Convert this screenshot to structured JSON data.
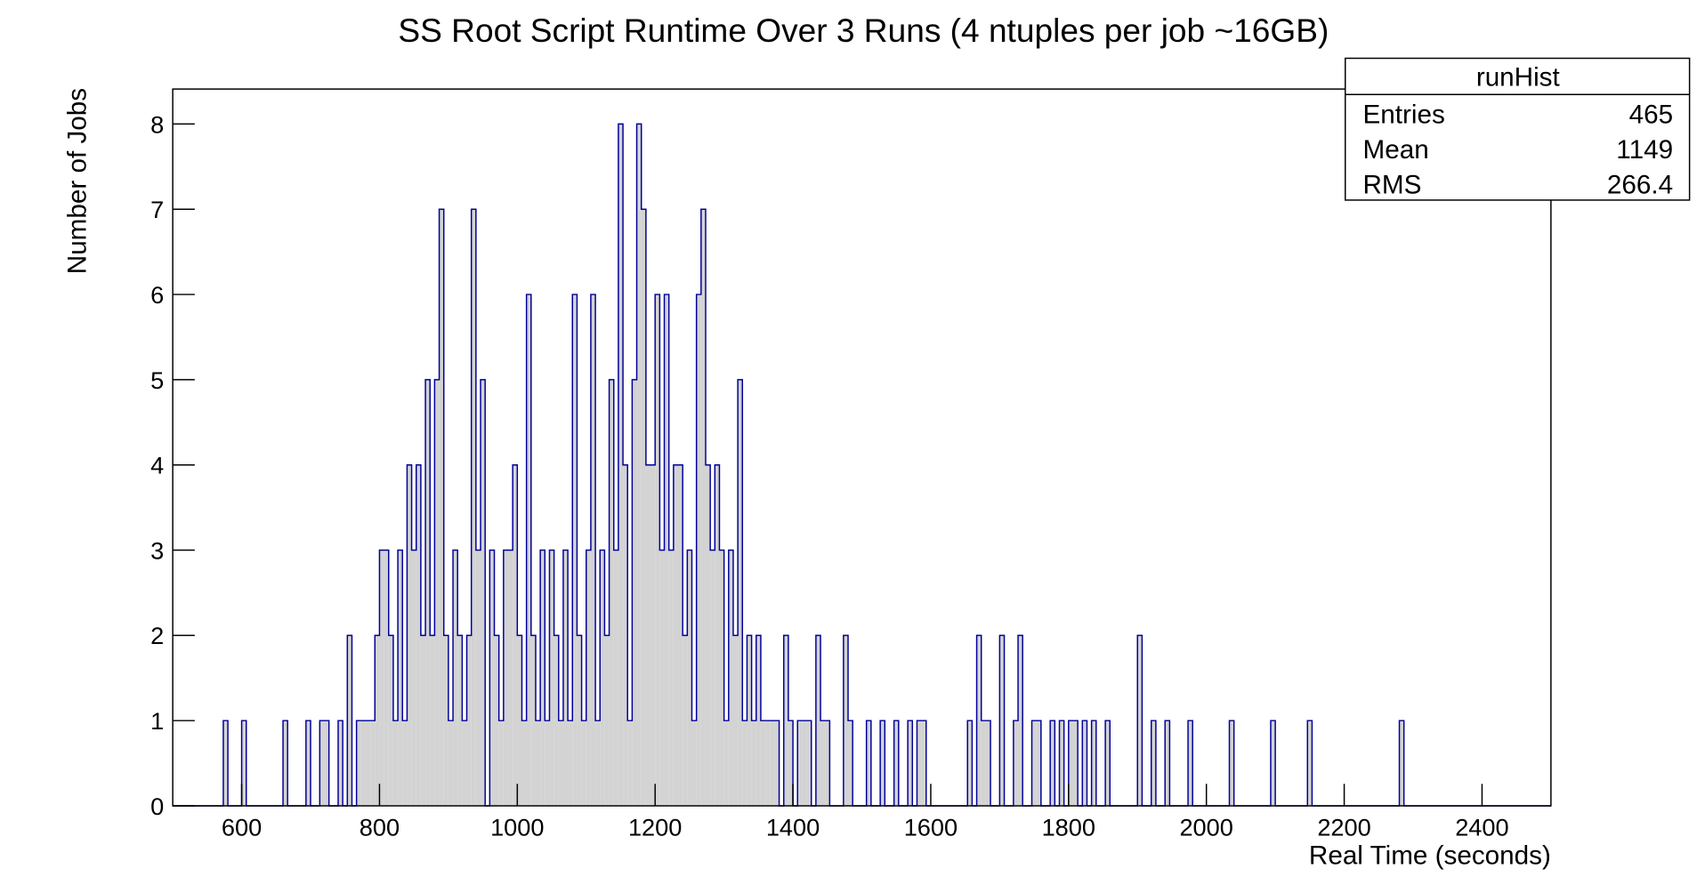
{
  "chart_data": {
    "type": "histogram",
    "title": "SS Root Script Runtime Over 3 Runs (4 ntuples per job ~16GB)",
    "xlabel": "Real Time (seconds)",
    "ylabel": "Number of Jobs",
    "color": "#d3d3d3",
    "edgecolor": "#000099",
    "xlim": [
      500,
      2500
    ],
    "ylim": [
      0,
      8.41
    ],
    "xticks": [
      600,
      800,
      1000,
      1200,
      1400,
      1600,
      1800,
      2000,
      2200,
      2400
    ],
    "yticks": [
      0,
      1,
      2,
      3,
      4,
      5,
      6,
      7,
      8
    ],
    "stats": {
      "title": "runHist",
      "rows": [
        {
          "label": "Entries",
          "value": 465
        },
        {
          "label": "Mean",
          "value": 1149
        },
        {
          "label": "RMS",
          "value": 266.4
        }
      ]
    },
    "bins": [
      500,
      506.67,
      513.33,
      520,
      526.67,
      533.33,
      540,
      546.67,
      553.33,
      560,
      566.67,
      573.33,
      580,
      586.67,
      593.33,
      600,
      606.67,
      613.33,
      620,
      626.67,
      633.33,
      640,
      646.67,
      653.33,
      660,
      666.67,
      673.33,
      680,
      686.67,
      693.33,
      700,
      706.67,
      713.33,
      720,
      726.67,
      733.33,
      740,
      746.67,
      753.33,
      760,
      766.67,
      773.33,
      780,
      786.67,
      793.33,
      800,
      806.67,
      813.33,
      820,
      826.67,
      833.33,
      840,
      846.67,
      853.33,
      860,
      866.67,
      873.33,
      880,
      886.67,
      893.33,
      900,
      906.67,
      913.33,
      920,
      926.67,
      933.33,
      940,
      946.67,
      953.33,
      960,
      966.67,
      973.33,
      980,
      986.67,
      993.33,
      1000,
      1006.67,
      1013.33,
      1020,
      1026.67,
      1033.33,
      1040,
      1046.67,
      1053.33,
      1060,
      1066.67,
      1073.33,
      1080,
      1086.67,
      1093.33,
      1100,
      1106.67,
      1113.33,
      1120,
      1126.67,
      1133.33,
      1140,
      1146.67,
      1153.33,
      1160,
      1166.67,
      1173.33,
      1180,
      1186.67,
      1193.33,
      1200,
      1206.67,
      1213.33,
      1220,
      1226.67,
      1233.33,
      1240,
      1246.67,
      1253.33,
      1260,
      1266.67,
      1273.33,
      1280,
      1286.67,
      1293.33,
      1300,
      1306.67,
      1313.33,
      1320,
      1326.67,
      1333.33,
      1340,
      1346.67,
      1353.33,
      1360,
      1366.67,
      1373.33,
      1380,
      1386.67,
      1393.33,
      1400,
      1406.67,
      1413.33,
      1420,
      1426.67,
      1433.33,
      1440,
      1446.67,
      1453.33,
      1460,
      1466.67,
      1473.33,
      1480,
      1486.67,
      1493.33,
      1500,
      1506.67,
      1513.33,
      1520,
      1526.67,
      1533.33,
      1540,
      1546.67,
      1553.33,
      1560,
      1566.67,
      1573.33,
      1580,
      1586.67,
      1593.33,
      1600,
      1606.67,
      1613.33,
      1620,
      1626.67,
      1633.33,
      1640,
      1646.67,
      1653.33,
      1660,
      1666.67,
      1673.33,
      1680,
      1686.67,
      1693.33,
      1700,
      1706.67,
      1713.33,
      1720,
      1726.67,
      1733.33,
      1740,
      1746.67,
      1753.33,
      1760,
      1766.67,
      1773.33,
      1780,
      1786.67,
      1793.33,
      1800,
      1806.67,
      1813.33,
      1820,
      1826.67,
      1833.33,
      1840,
      1846.67,
      1853.33,
      1860,
      1866.67,
      1873.33,
      1880,
      1886.67,
      1893.33,
      1900,
      1906.67,
      1913.33,
      1920,
      1926.67,
      1933.33,
      1940,
      1946.67,
      1953.33,
      1960,
      1966.67,
      1973.33,
      1980,
      1986.67,
      1993.33,
      2000,
      2006.67,
      2013.33,
      2020,
      2026.67,
      2033.33,
      2040,
      2046.67,
      2053.33,
      2060,
      2066.67,
      2073.33,
      2080,
      2086.67,
      2093.33,
      2100,
      2106.67,
      2113.33,
      2120,
      2126.67,
      2133.33,
      2140,
      2146.67,
      2153.33,
      2160,
      2166.67,
      2173.33,
      2180,
      2186.67,
      2193.33,
      2200,
      2206.67,
      2213.33,
      2220,
      2226.67,
      2233.33,
      2240,
      2246.67,
      2253.33,
      2260,
      2266.67,
      2273.33,
      2280,
      2286.67,
      2293.33,
      2300,
      2306.67,
      2313.33,
      2320,
      2326.67,
      2333.33,
      2340,
      2346.67,
      2353.33,
      2360,
      2366.67,
      2373.33,
      2380,
      2386.67,
      2393.33,
      2400,
      2406.67,
      2413.33,
      2420,
      2426.67,
      2433.33,
      2440,
      2446.67,
      2453.33,
      2460,
      2466.67,
      2473.33,
      2480,
      2486.67,
      2493.33,
      2500
    ],
    "values": [
      0,
      0,
      0,
      0,
      0,
      0,
      0,
      0,
      0,
      0,
      0,
      1,
      0,
      0,
      0,
      1,
      0,
      0,
      0,
      0,
      0,
      0,
      0,
      0,
      1,
      0,
      0,
      0,
      0,
      1,
      0,
      0,
      1,
      1,
      0,
      0,
      1,
      0,
      2,
      0,
      1,
      1,
      1,
      1,
      2,
      3,
      3,
      2,
      1,
      3,
      1,
      4,
      3,
      4,
      2,
      5,
      2,
      5,
      7,
      2,
      1,
      3,
      2,
      1,
      2,
      7,
      3,
      5,
      0,
      3,
      2,
      1,
      3,
      3,
      4,
      2,
      1,
      6,
      2,
      1,
      3,
      1,
      3,
      2,
      1,
      3,
      1,
      6,
      2,
      1,
      3,
      6,
      1,
      3,
      2,
      5,
      3,
      8,
      4,
      1,
      5,
      8,
      7,
      4,
      4,
      6,
      3,
      6,
      3,
      4,
      4,
      2,
      3,
      1,
      6,
      7,
      4,
      3,
      4,
      3,
      1,
      3,
      2,
      5,
      1,
      2,
      1,
      2,
      1,
      1,
      1,
      1,
      0,
      2,
      1,
      0,
      1,
      1,
      1,
      0,
      2,
      1,
      1,
      0,
      0,
      0,
      2,
      1,
      0,
      0,
      0,
      1,
      0,
      0,
      1,
      0,
      0,
      1,
      0,
      0,
      1,
      0,
      1,
      1,
      0,
      0,
      0,
      0,
      0,
      0,
      0,
      0,
      0,
      1,
      0,
      2,
      1,
      1,
      0,
      0,
      2,
      0,
      0,
      1,
      2,
      0,
      0,
      1,
      1,
      0,
      0,
      1,
      0,
      1,
      0,
      1,
      1,
      0,
      1,
      0,
      1,
      0,
      0,
      1,
      0,
      0,
      0,
      0,
      0,
      0,
      2,
      0,
      0,
      1,
      0,
      0,
      1,
      0,
      0,
      0,
      0,
      1,
      0,
      0,
      0,
      0,
      0,
      0,
      0,
      0,
      1,
      0,
      0,
      0,
      0,
      0,
      0,
      0,
      0,
      1,
      0,
      0,
      0,
      0,
      0,
      0,
      0,
      1,
      0,
      0,
      0,
      0,
      0,
      0,
      0,
      0,
      0,
      0,
      0,
      0,
      0,
      0,
      0,
      0,
      0,
      0,
      0,
      1,
      0,
      0,
      0,
      0,
      0,
      0,
      0,
      0,
      0,
      0,
      0,
      0,
      0,
      0,
      0,
      0,
      0,
      0,
      0,
      0,
      0,
      0,
      0,
      0,
      0,
      0,
      0,
      0,
      0,
      0,
      0,
      0
    ]
  }
}
